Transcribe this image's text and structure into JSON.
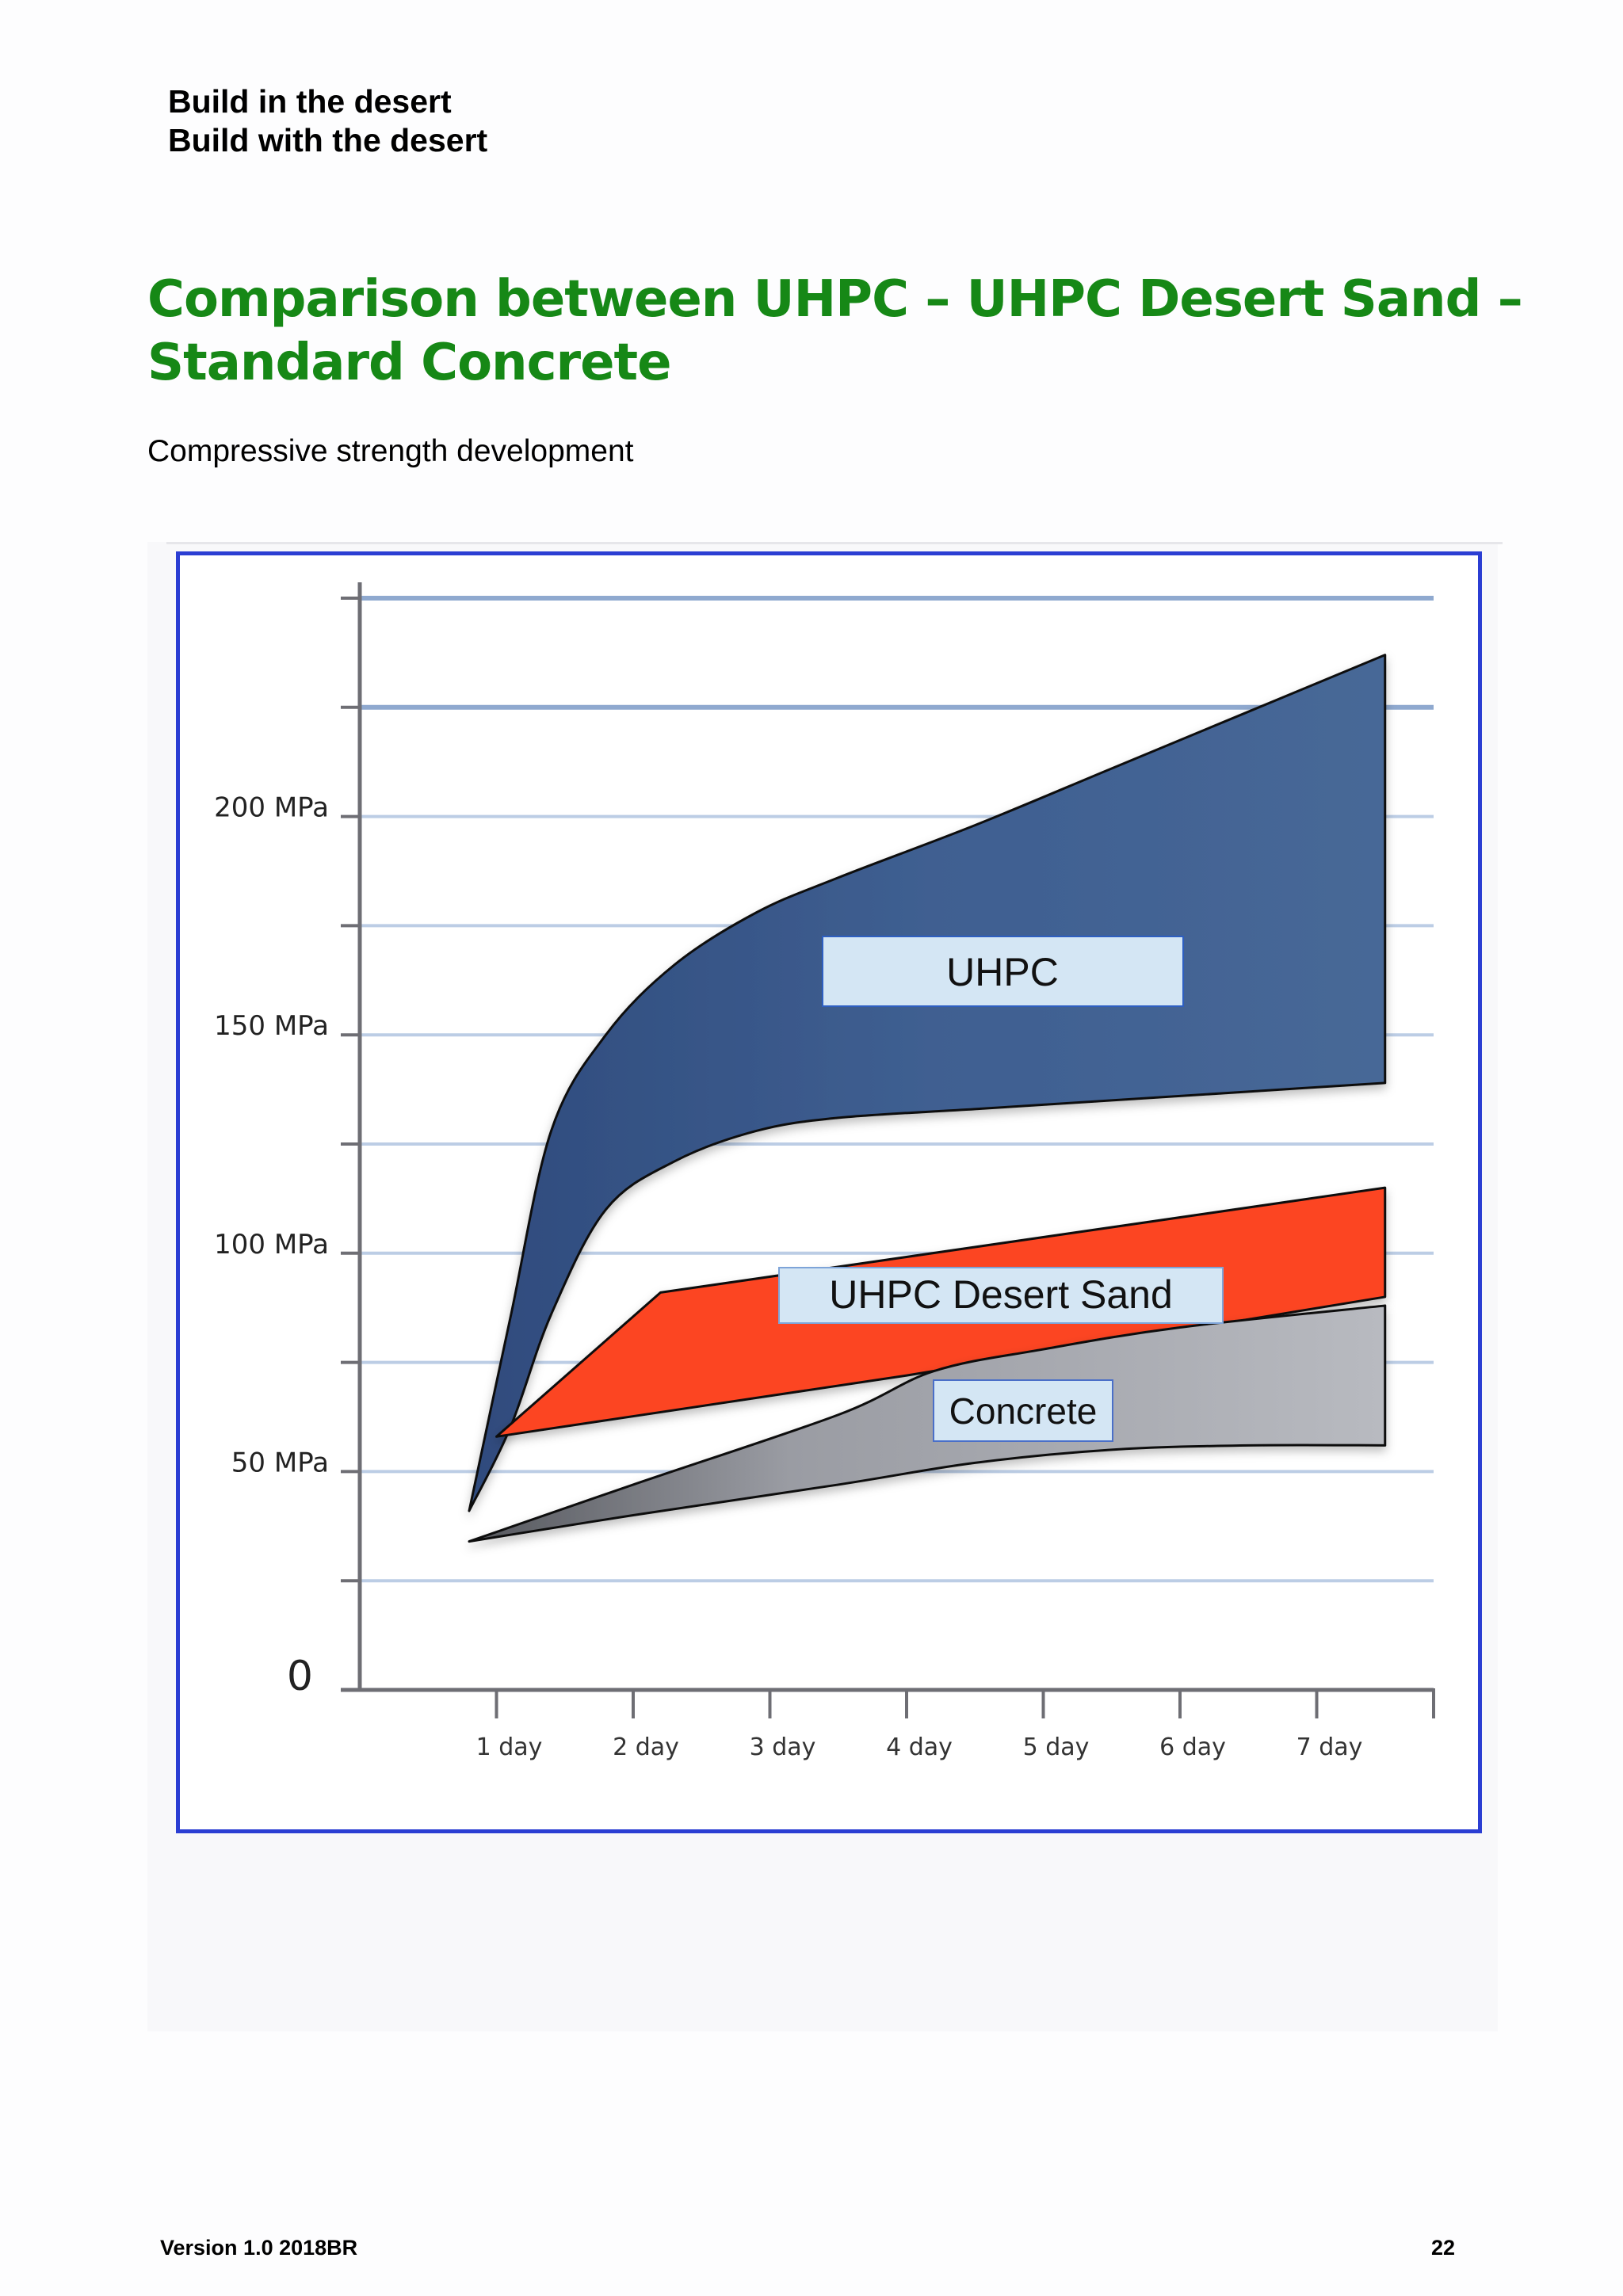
{
  "header": {
    "line1": "Build in the desert",
    "line2": "Build with the desert"
  },
  "title": "Comparison between UHPC – UHPC Desert Sand – Standard Concrete",
  "subtitle": "Compressive strength development",
  "footer": {
    "version": "Version 1.0 2018BR",
    "page_number": "22"
  },
  "colors": {
    "title": "#168816",
    "frame": "#2b3ed3",
    "uhpc": "#3f5f91",
    "desert_sand": "#fc4422",
    "concrete": "#b2b4bb",
    "label_box": "#d4e6f4"
  },
  "chart_data": {
    "type": "area",
    "x_tick_labels": [
      "1 day",
      "2 day",
      "3 day",
      "4 day",
      "5 day",
      "6 day",
      "7 day"
    ],
    "x_tick_values": [
      1,
      2,
      3,
      4,
      5,
      6,
      7
    ],
    "xlim": [
      0,
      8
    ],
    "y_tick_labels": [
      {
        "value": 0,
        "label": "0"
      },
      {
        "value": 50,
        "label": "50 MPa"
      },
      {
        "value": 100,
        "label": "100 MPa"
      },
      {
        "value": 150,
        "label": "150 MPa"
      },
      {
        "value": 200,
        "label": "200 MPa"
      }
    ],
    "y_grid": [
      25,
      50,
      75,
      100,
      125,
      150,
      175,
      200,
      225,
      250
    ],
    "ylim": [
      0,
      250
    ],
    "grid": true,
    "legend": "in-plot labels",
    "series": [
      {
        "name": "UHPC",
        "upper": [
          [
            0.8,
            41
          ],
          [
            1.1,
            85
          ],
          [
            1.4,
            128
          ],
          [
            1.8,
            150
          ],
          [
            2.3,
            166
          ],
          [
            2.9,
            178
          ],
          [
            3.5,
            186
          ],
          [
            4.5,
            198
          ],
          [
            5.5,
            211
          ],
          [
            6.5,
            224
          ],
          [
            7.5,
            237
          ]
        ],
        "lower": [
          [
            0.8,
            41
          ],
          [
            1.1,
            60
          ],
          [
            1.4,
            86
          ],
          [
            1.8,
            110
          ],
          [
            2.3,
            121
          ],
          [
            2.9,
            128
          ],
          [
            3.5,
            131
          ],
          [
            4.5,
            133
          ],
          [
            5.5,
            135
          ],
          [
            6.5,
            137
          ],
          [
            7.5,
            139
          ]
        ]
      },
      {
        "name": "UHPC Desert Sand",
        "upper": [
          [
            1.0,
            58
          ],
          [
            2.2,
            91
          ],
          [
            7.5,
            115
          ]
        ],
        "lower": [
          [
            1.0,
            58
          ],
          [
            4.0,
            72
          ],
          [
            7.5,
            90
          ]
        ]
      },
      {
        "name": "Concrete",
        "upper": [
          [
            0.8,
            34
          ],
          [
            2.0,
            47
          ],
          [
            3.5,
            63
          ],
          [
            4.2,
            73
          ],
          [
            5.0,
            78
          ],
          [
            6.0,
            83
          ],
          [
            7.5,
            88
          ]
        ],
        "lower": [
          [
            0.8,
            34
          ],
          [
            2.0,
            40
          ],
          [
            3.5,
            47
          ],
          [
            4.5,
            52
          ],
          [
            5.5,
            55
          ],
          [
            6.5,
            56
          ],
          [
            7.5,
            56
          ]
        ]
      }
    ]
  }
}
